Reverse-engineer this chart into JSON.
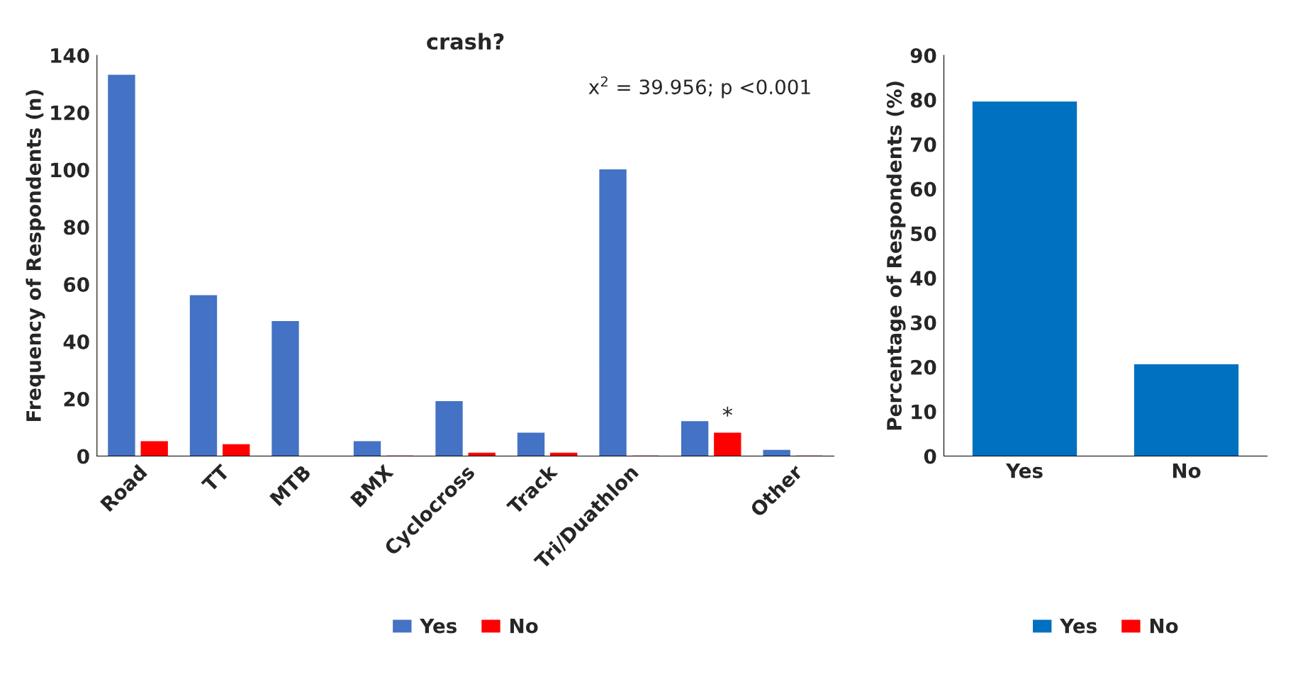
{
  "chart_data": [
    {
      "type": "bar",
      "title": "crash?",
      "ylabel": "Frequency of Respondents (n)",
      "categories": [
        "Road",
        "TT",
        "MTB",
        "BMX",
        "Cyclocross",
        "Track",
        "Tri/Duathlon",
        null,
        "Other"
      ],
      "series": [
        {
          "name": "Yes",
          "color": "#4472c4",
          "values": [
            133,
            56,
            47,
            5,
            19,
            8,
            100,
            12,
            2
          ]
        },
        {
          "name": "No",
          "color": "#ff0000",
          "values": [
            5,
            4,
            null,
            0,
            1,
            1,
            0,
            8,
            0
          ]
        }
      ],
      "ylim": [
        0,
        140
      ],
      "yticks": [
        0,
        20,
        40,
        60,
        80,
        100,
        120,
        140
      ],
      "grid": false,
      "legend": "bottom",
      "annotations": [
        "x$^{2}$ = 39.956; p <0.001",
        "*"
      ]
    },
    {
      "type": "bar",
      "ylabel": "Percentage of Respondents (%)",
      "categories": [
        "Yes",
        "No"
      ],
      "series": [
        {
          "name": "Yes",
          "color": "#0070c0",
          "values": [
            79.5,
            20.5
          ]
        },
        {
          "name": "No",
          "color": "#ff0000",
          "values": [
            null,
            null
          ]
        }
      ],
      "ylim": [
        0,
        90
      ],
      "yticks": [
        0,
        10,
        20,
        30,
        40,
        50,
        60,
        70,
        80,
        90
      ],
      "grid": false,
      "legend": "bottom"
    }
  ]
}
